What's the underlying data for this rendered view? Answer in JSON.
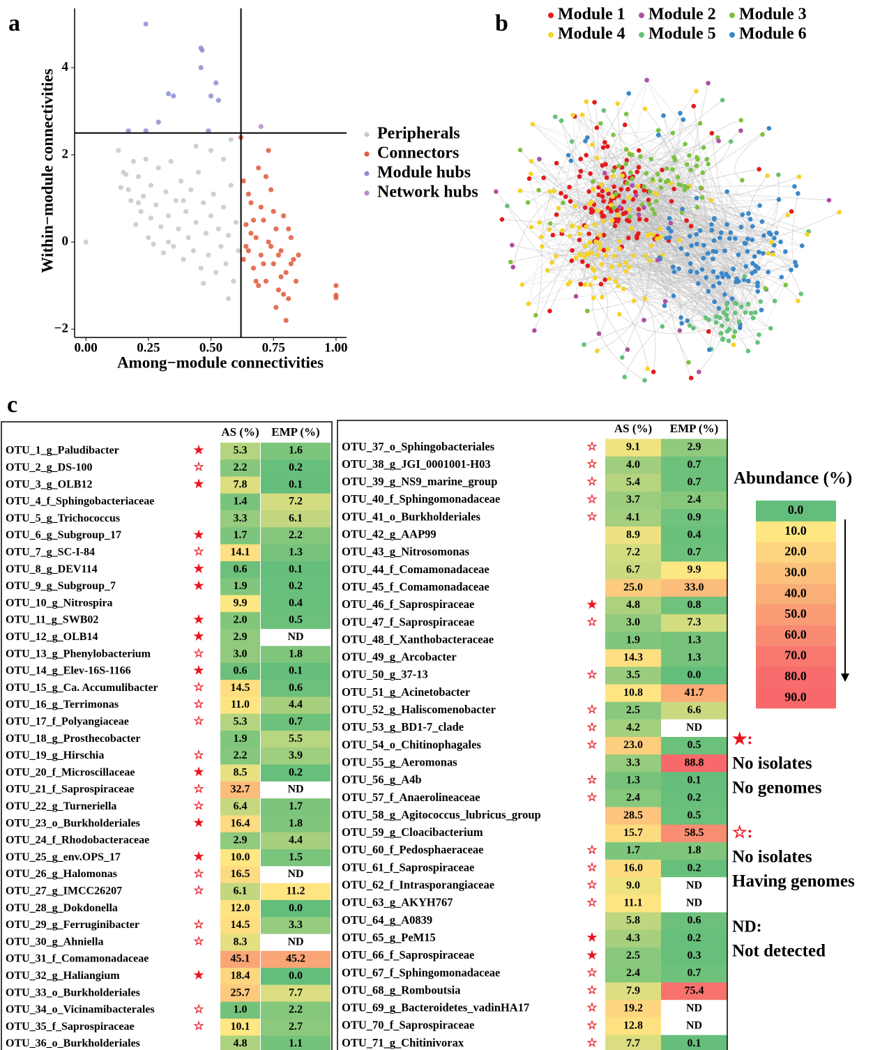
{
  "panel_labels": [
    "a",
    "b",
    "c"
  ],
  "chart_data": {
    "type": "scatter",
    "xlabel": "Among−module connectivities",
    "ylabel": "Within−module connectivities",
    "xlim": [
      -0.045,
      1.042
    ],
    "ylim": [
      -2.19,
      5.36
    ],
    "xticks": [
      {
        "value": 0,
        "label": "0.00"
      },
      {
        "value": 0.25,
        "label": "0.25"
      },
      {
        "value": 0.5,
        "label": "0.50"
      },
      {
        "value": 0.75,
        "label": "0.75"
      },
      {
        "value": 1,
        "label": "1.00"
      }
    ],
    "yticks": [
      {
        "value": -2,
        "label": "−2"
      },
      0,
      2,
      4
    ],
    "thresholds": {
      "x": 0.62,
      "y": 2.5
    },
    "series": [
      {
        "name": "Peripherals",
        "color": "#c8c8c8",
        "x": [
          0.0,
          0.13,
          0.14,
          0.16,
          0.17,
          0.18,
          0.19,
          0.2,
          0.21,
          0.22,
          0.23,
          0.24,
          0.25,
          0.26,
          0.27,
          0.28,
          0.29,
          0.3,
          0.31,
          0.32,
          0.33,
          0.34,
          0.35,
          0.36,
          0.37,
          0.38,
          0.39,
          0.4,
          0.41,
          0.42,
          0.43,
          0.44,
          0.45,
          0.46,
          0.47,
          0.48,
          0.49,
          0.5,
          0.51,
          0.52,
          0.53,
          0.54,
          0.55,
          0.56,
          0.57,
          0.58,
          0.59,
          0.6,
          0.61,
          0.55,
          0.5,
          0.44,
          0.58,
          0.57,
          0.47,
          0.39,
          0.33,
          0.26,
          0.21,
          0.15
        ],
        "values": [
          0.0,
          2.1,
          1.25,
          1.55,
          1.2,
          0.95,
          1.85,
          0.4,
          1.5,
          0.7,
          1.05,
          1.9,
          0.1,
          1.3,
          -0.05,
          0.85,
          1.7,
          0.35,
          -0.25,
          1.15,
          0.6,
          1.85,
          -0.1,
          0.95,
          0.3,
          1.4,
          -0.4,
          0.7,
          0.1,
          1.2,
          -0.2,
          0.45,
          1.6,
          -0.6,
          0.9,
          0.2,
          -0.3,
          0.6,
          1.1,
          -0.7,
          0.3,
          -0.1,
          0.8,
          -0.5,
          0.15,
          1.3,
          -0.9,
          0.45,
          -0.2,
          1.9,
          2.1,
          2.2,
          2.35,
          -1.3,
          -0.95,
          0.95,
          0.0,
          0.55,
          0.9,
          1.6
        ]
      },
      {
        "name": "Connectors",
        "color": "#e2583a",
        "x": [
          0.62,
          0.63,
          0.64,
          0.65,
          0.66,
          0.67,
          0.68,
          0.69,
          0.7,
          0.71,
          0.72,
          0.73,
          0.74,
          0.75,
          0.76,
          0.77,
          0.78,
          0.79,
          0.8,
          0.81,
          0.82,
          0.83,
          0.84,
          0.85,
          0.63,
          0.66,
          0.69,
          0.7,
          0.72,
          0.74,
          0.76,
          0.78,
          0.8,
          0.82,
          0.73,
          0.65,
          0.68,
          0.71,
          0.75,
          0.77,
          0.79,
          0.81,
          0.67,
          0.64,
          1.0,
          1.0,
          1.0
        ],
        "values": [
          2.4,
          1.4,
          0.4,
          -0.2,
          0.9,
          -0.6,
          0.1,
          1.7,
          -0.3,
          0.5,
          -0.9,
          0.0,
          1.2,
          -0.5,
          0.3,
          -1.1,
          -0.2,
          0.6,
          -0.7,
          -1.3,
          0.1,
          -0.4,
          -0.9,
          -0.3,
          -0.4,
          0.2,
          -1.0,
          0.8,
          1.5,
          -0.1,
          -1.5,
          -0.8,
          -1.8,
          -0.5,
          2.1,
          1.1,
          -0.9,
          -0.5,
          0.7,
          -0.3,
          -1.2,
          0.3,
          0.5,
          -0.1,
          -1.0,
          -1.22,
          -1.28
        ]
      },
      {
        "name": "Module hubs",
        "color": "#8c8fd0",
        "x": [
          0.24,
          0.46,
          0.465,
          0.46,
          0.52,
          0.53,
          0.5,
          0.33,
          0.35,
          0.29,
          0.17,
          0.24,
          0.49
        ],
        "values": [
          5.0,
          4.45,
          4.4,
          4.0,
          3.65,
          3.25,
          3.35,
          3.4,
          3.35,
          2.75,
          2.55,
          2.55,
          2.55
        ]
      },
      {
        "name": "Network hubs",
        "color": "#b889c9",
        "x": [
          0.7
        ],
        "values": [
          2.65
        ]
      }
    ]
  },
  "network": {
    "modules": [
      {
        "name": "Module 1",
        "color": "#e41a1c"
      },
      {
        "name": "Module 2",
        "color": "#b04fa3"
      },
      {
        "name": "Module 3",
        "color": "#7cc242"
      },
      {
        "name": "Module 4",
        "color": "#f5d327"
      },
      {
        "name": "Module 5",
        "color": "#66c17a"
      },
      {
        "name": "Module 6",
        "color": "#3a87c8"
      }
    ]
  },
  "table": {
    "tables": [
      {
        "columns": [
          "AS (%)",
          "EMP (%)"
        ],
        "rows": [
          [
            "OTU_1_g_Paludibacter",
            "★",
            "5.3",
            "1.6"
          ],
          [
            "OTU_2_g_DS-100",
            "☆",
            "2.2",
            "0.2"
          ],
          [
            "OTU_3_g_OLB12",
            "★",
            "7.8",
            "0.1"
          ],
          [
            "OTU_4_f_Sphingobacteriaceae",
            null,
            "1.4",
            "7.2"
          ],
          [
            "OTU_5_g_Trichococcus",
            null,
            "3.3",
            "6.1"
          ],
          [
            "OTU_6_g_Subgroup_17",
            "★",
            "1.7",
            "2.2"
          ],
          [
            "OTU_7_g_SC-I-84",
            "☆",
            "14.1",
            "1.3"
          ],
          [
            "OTU_8_g_DEV114",
            "★",
            "0.6",
            "0.1"
          ],
          [
            "OTU_9_g_Subgroup_7",
            "★",
            "1.9",
            "0.2"
          ],
          [
            "OTU_10_g_Nitrospira",
            null,
            "9.9",
            "0.4"
          ],
          [
            "OTU_11_g_SWB02",
            "★",
            "2.0",
            "0.5"
          ],
          [
            "OTU_12_g_OLB14",
            "★",
            "2.9",
            "ND"
          ],
          [
            "OTU_13_g_Phenylobacterium",
            "☆",
            "3.0",
            "1.8"
          ],
          [
            "OTU_14_g_Elev-16S-1166",
            "★",
            "0.6",
            "0.1"
          ],
          [
            "OTU_15_g_Ca. Accumulibacter",
            "☆",
            "14.5",
            "0.6"
          ],
          [
            "OTU_16_g_Terrimonas",
            "☆",
            "11.0",
            "4.4"
          ],
          [
            "OTU_17_f_Polyangiaceae",
            "☆",
            "5.3",
            "0.7"
          ],
          [
            "OTU_18_g_Prosthecobacter",
            null,
            "1.9",
            "5.5"
          ],
          [
            "OTU_19_g_Hirschia",
            "☆",
            "2.2",
            "3.9"
          ],
          [
            "OTU_20_f_Microscillaceae",
            "★",
            "8.5",
            "0.2"
          ],
          [
            "OTU_21_f_Saprospiraceae",
            "☆",
            "32.7",
            "ND"
          ],
          [
            "OTU_22_g_Turneriella",
            "☆",
            "6.4",
            "1.7"
          ],
          [
            "OTU_23_o_Burkholderiales",
            "★",
            "16.4",
            "1.8"
          ],
          [
            "OTU_24_f_Rhodobacteraceae",
            null,
            "2.9",
            "4.4"
          ],
          [
            "OTU_25_g_env.OPS_17",
            "★",
            "10.0",
            "1.5"
          ],
          [
            "OTU_26_g_Halomonas",
            "☆",
            "16.5",
            "ND"
          ],
          [
            "OTU_27_g_IMCC26207",
            "☆",
            "6.1",
            "11.2"
          ],
          [
            "OTU_28_g_Dokdonella",
            null,
            "12.0",
            "0.0"
          ],
          [
            "OTU_29_g_Ferruginibacter",
            "☆",
            "14.5",
            "3.3"
          ],
          [
            "OTU_30_g_Ahniella",
            "☆",
            "8.3",
            "ND"
          ],
          [
            "OTU_31_f_Comamonadaceae",
            null,
            "45.1",
            "45.2"
          ],
          [
            "OTU_32_g_Haliangium",
            "★",
            "18.4",
            "0.0"
          ],
          [
            "OTU_33_o_Burkholderiales",
            null,
            "25.7",
            "7.7"
          ],
          [
            "OTU_34_o_Vicinamibacterales",
            "☆",
            "1.0",
            "2.2"
          ],
          [
            "OTU_35_f_Saprospiraceae",
            "☆",
            "10.1",
            "2.7"
          ],
          [
            "OTU_36_o_Burkholderiales",
            null,
            "4.8",
            "1.1"
          ]
        ]
      },
      {
        "columns": [
          "AS (%)",
          "EMP (%)"
        ],
        "rows": [
          [
            "OTU_37_o_Sphingobacteriales",
            "☆",
            "9.1",
            "2.9"
          ],
          [
            "OTU_38_g_JGI_0001001-H03",
            "☆",
            "4.0",
            "0.7"
          ],
          [
            "OTU_39_g_NS9_marine_group",
            "☆",
            "5.4",
            "0.7"
          ],
          [
            "OTU_40_f_Sphingomonadaceae",
            "☆",
            "3.7",
            "2.4"
          ],
          [
            "OTU_41_o_Burkholderiales",
            "☆",
            "4.1",
            "0.9"
          ],
          [
            "OTU_42_g_AAP99",
            null,
            "8.9",
            "0.4"
          ],
          [
            "OTU_43_g_Nitrosomonas",
            null,
            "7.2",
            "0.7"
          ],
          [
            "OTU_44_f_Comamonadaceae",
            null,
            "6.7",
            "9.9"
          ],
          [
            "OTU_45_f_Comamonadaceae",
            null,
            "25.0",
            "33.0"
          ],
          [
            "OTU_46_f_Saprospiraceae",
            "★",
            "4.8",
            "0.8"
          ],
          [
            "OTU_47_f_Saprospiraceae",
            "☆",
            "3.0",
            "7.3"
          ],
          [
            "OTU_48_f_Xanthobacteraceae",
            null,
            "1.9",
            "1.3"
          ],
          [
            "OTU_49_g_Arcobacter",
            null,
            "14.3",
            "1.3"
          ],
          [
            "OTU_50_g_37-13",
            "☆",
            "3.5",
            "0.0"
          ],
          [
            "OTU_51_g_Acinetobacter",
            null,
            "10.8",
            "41.7"
          ],
          [
            "OTU_52_g_Haliscomenobacter",
            "☆",
            "2.5",
            "6.6"
          ],
          [
            "OTU_53_g_BD1-7_clade",
            "☆",
            "4.2",
            "ND"
          ],
          [
            "OTU_54_o_Chitinophagales",
            "☆",
            "23.0",
            "0.5"
          ],
          [
            "OTU_55_g_Aeromonas",
            null,
            "3.3",
            "88.8"
          ],
          [
            "OTU_56_g_A4b",
            "☆",
            "1.3",
            "0.1"
          ],
          [
            "OTU_57_f_Anaerolineaceae",
            "☆",
            "2.4",
            "0.2"
          ],
          [
            "OTU_58_g_Agitococcus_lubricus_group",
            null,
            "28.5",
            "0.5"
          ],
          [
            "OTU_59_g_Cloacibacterium",
            null,
            "15.7",
            "58.5"
          ],
          [
            "OTU_60_f_Pedosphaeraceae",
            "☆",
            "1.7",
            "1.8"
          ],
          [
            "OTU_61_f_Saprospiraceae",
            "☆",
            "16.0",
            "0.2"
          ],
          [
            "OTU_62_f_Intrasporangiaceae",
            "☆",
            "9.0",
            "ND"
          ],
          [
            "OTU_63_g_AKYH767",
            "☆",
            "11.1",
            "ND"
          ],
          [
            "OTU_64_g_A0839",
            null,
            "5.8",
            "0.6"
          ],
          [
            "OTU_65_g_PeM15",
            "★",
            "4.3",
            "0.2"
          ],
          [
            "OTU_66_f_Saprospiraceae",
            "★",
            "2.5",
            "0.3"
          ],
          [
            "OTU_67_f_Sphingomonadaceae",
            "☆",
            "2.4",
            "0.7"
          ],
          [
            "OTU_68_g_Romboutsia",
            "☆",
            "7.9",
            "75.4"
          ],
          [
            "OTU_69_g_Bacteroidetes_vadinHA17",
            "☆",
            "19.2",
            "ND"
          ],
          [
            "OTU_70_f_Saprospiraceae",
            "☆",
            "12.8",
            "ND"
          ],
          [
            "OTU_71_g_Chitinivorax",
            "☆",
            "7.7",
            "0.1"
          ]
        ]
      }
    ],
    "scale_title": "Abundance (%)",
    "scale": [
      {
        "label": "0.0",
        "color": "#63be7b"
      },
      {
        "label": "10.0",
        "color": "#fee782"
      },
      {
        "label": "20.0",
        "color": "#fdd47f"
      },
      {
        "label": "30.0",
        "color": "#fcc17c"
      },
      {
        "label": "40.0",
        "color": "#fbaf78"
      },
      {
        "label": "50.0",
        "color": "#fa9c75"
      },
      {
        "label": "60.0",
        "color": "#f98a72"
      },
      {
        "label": "70.0",
        "color": "#f8786f"
      },
      {
        "label": "80.0",
        "color": "#f76c6c"
      },
      {
        "label": "90.0",
        "color": "#f8696b"
      }
    ],
    "notes": [
      {
        "symbol": "★:",
        "lines": [
          "No isolates",
          "No genomes"
        ]
      },
      {
        "symbol": "☆:",
        "lines": [
          "No isolates",
          "Having genomes"
        ]
      },
      {
        "symbol": "ND:",
        "lines": [
          "Not detected"
        ]
      }
    ]
  }
}
